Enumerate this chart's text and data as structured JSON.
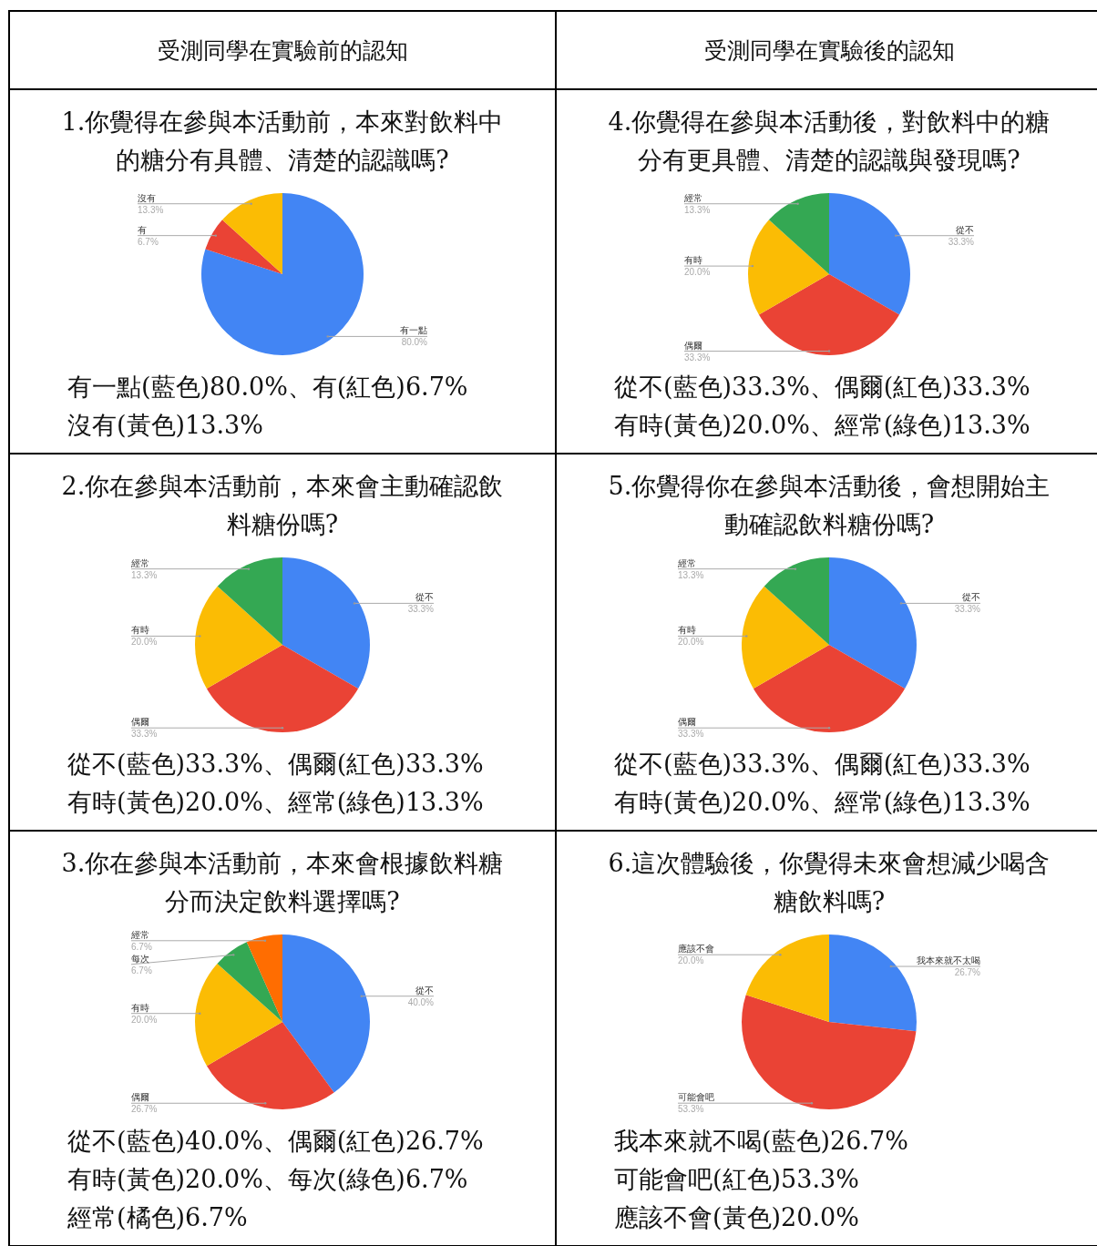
{
  "chart_data": [
    {
      "type": "other",
      "title": "受測同學在實驗前的認知"
    },
    {
      "type": "other",
      "title": "受測同學在實驗後的認知"
    },
    {
      "type": "pie",
      "title": "1.你覺得在參與本活動前，本來對飲料中的糖分有具體、清楚的認識嗎?",
      "categories": [
        "有一點",
        "有",
        "沒有"
      ],
      "values": [
        80.0,
        6.7,
        13.3
      ],
      "colors": [
        "#4285f4",
        "#ea4335",
        "#fbbc04"
      ],
      "value_labels": [
        "80.0%",
        "6.7%",
        "13.3%"
      ],
      "annotations": [
        "有一點(藍色)80.0%、有(紅色)6.7%",
        "沒有(黃色)13.3%"
      ]
    },
    {
      "type": "pie",
      "title": "4.你覺得在參與本活動後，對飲料中的糖分有更具體、清楚的認識與發現嗎?",
      "categories": [
        "從不",
        "偶爾",
        "有時",
        "經常"
      ],
      "values": [
        33.3,
        33.3,
        20.0,
        13.3
      ],
      "colors": [
        "#4285f4",
        "#ea4335",
        "#fbbc04",
        "#34a853"
      ],
      "value_labels": [
        "33.3%",
        "33.3%",
        "20.0%",
        "13.3%"
      ],
      "annotations": [
        "從不(藍色)33.3%、偶爾(紅色)33.3%",
        "有時(黃色)20.0%、經常(綠色)13.3%"
      ]
    },
    {
      "type": "pie",
      "title": "2.你在參與本活動前，本來會主動確認飲料糖份嗎?",
      "categories": [
        "從不",
        "偶爾",
        "有時",
        "經常"
      ],
      "values": [
        33.3,
        33.3,
        20.0,
        13.3
      ],
      "colors": [
        "#4285f4",
        "#ea4335",
        "#fbbc04",
        "#34a853"
      ],
      "value_labels": [
        "33.3%",
        "33.3%",
        "20.0%",
        "13.3%"
      ],
      "annotations": [
        "從不(藍色)33.3%、偶爾(紅色)33.3%",
        "有時(黃色)20.0%、經常(綠色)13.3%"
      ]
    },
    {
      "type": "pie",
      "title": "5.你覺得你在參與本活動後，會想開始主動確認飲料糖份嗎?",
      "categories": [
        "從不",
        "偶爾",
        "有時",
        "經常"
      ],
      "values": [
        33.3,
        33.3,
        20.0,
        13.3
      ],
      "colors": [
        "#4285f4",
        "#ea4335",
        "#fbbc04",
        "#34a853"
      ],
      "value_labels": [
        "33.3%",
        "33.3%",
        "20.0%",
        "13.3%"
      ],
      "annotations": [
        "從不(藍色)33.3%、偶爾(紅色)33.3%",
        "有時(黃色)20.0%、經常(綠色)13.3%"
      ]
    },
    {
      "type": "pie",
      "title": "3.你在參與本活動前，本來會根據飲料糖分而決定飲料選擇嗎?",
      "categories": [
        "從不",
        "偶爾",
        "有時",
        "每次",
        "經常"
      ],
      "values": [
        40.0,
        26.7,
        20.0,
        6.7,
        6.7
      ],
      "colors": [
        "#4285f4",
        "#ea4335",
        "#fbbc04",
        "#34a853",
        "#ff6d01"
      ],
      "value_labels": [
        "40.0%",
        "26.7%",
        "20.0%",
        "6.7%",
        "6.7%"
      ],
      "annotations": [
        "從不(藍色)40.0%、偶爾(紅色)26.7%",
        "有時(黃色)20.0%、每次(綠色)6.7%",
        "經常(橘色)6.7%"
      ]
    },
    {
      "type": "pie",
      "title": "6.這次體驗後，你覺得未來會想減少喝含糖飲料嗎?",
      "categories": [
        "我本來就不太喝",
        "可能會吧",
        "應該不會"
      ],
      "values": [
        26.7,
        53.3,
        20.0
      ],
      "colors": [
        "#4285f4",
        "#ea4335",
        "#fbbc04"
      ],
      "value_labels": [
        "26.7%",
        "53.3%",
        "20.0%"
      ],
      "annotations": [
        "我本來就不喝(藍色)26.7%",
        "可能會吧(紅色)53.3%",
        "應該不會(黃色)20.0%"
      ]
    }
  ]
}
